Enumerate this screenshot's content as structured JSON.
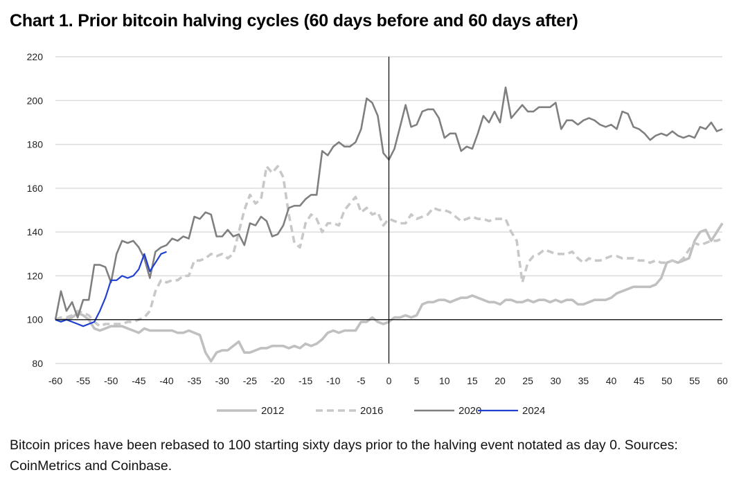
{
  "chart_data": {
    "type": "line",
    "title": "Chart 1. Prior bitcoin halving cycles (60 days before and 60 days after)",
    "xlabel": "",
    "ylabel": "",
    "xlim": [
      -60,
      60
    ],
    "ylim": [
      80,
      220
    ],
    "x_ticks": [
      -60,
      -55,
      -50,
      -45,
      -40,
      -35,
      -30,
      -25,
      -20,
      -15,
      -10,
      -5,
      0,
      5,
      10,
      15,
      20,
      25,
      30,
      35,
      40,
      45,
      50,
      55,
      60
    ],
    "y_ticks": [
      80,
      100,
      120,
      140,
      160,
      180,
      200,
      220
    ],
    "grid": "horizontal",
    "reference_lines": {
      "y": 100,
      "x": 0
    },
    "legend_position": "bottom",
    "x_start": -60,
    "series": [
      {
        "name": "2012",
        "color": "#c0c0c0",
        "style": "solid",
        "values": [
          100,
          100,
          100,
          101,
          103,
          102,
          100,
          96,
          95,
          96,
          97,
          97,
          97,
          96,
          95,
          94,
          96,
          95,
          95,
          95,
          95,
          95,
          94,
          94,
          95,
          94,
          93,
          85,
          81,
          85,
          86,
          86,
          88,
          90,
          85,
          85,
          86,
          87,
          87,
          88,
          88,
          88,
          87,
          88,
          87,
          89,
          88,
          89,
          91,
          94,
          95,
          94,
          95,
          95,
          95,
          99,
          99,
          101,
          99,
          98,
          99,
          101,
          101,
          102,
          101,
          102,
          107,
          108,
          108,
          109,
          109,
          108,
          109,
          110,
          110,
          111,
          110,
          109,
          108,
          108,
          107,
          109,
          109,
          108,
          108,
          109,
          108,
          109,
          109,
          108,
          109,
          108,
          109,
          109,
          107,
          107,
          108,
          109,
          109,
          109,
          110,
          112,
          113,
          114,
          115,
          115,
          115,
          115,
          116,
          119,
          126,
          127,
          126,
          127,
          128,
          136,
          140,
          141,
          136,
          140,
          144
        ]
      },
      {
        "name": "2016",
        "color": "#c8c8c8",
        "style": "dashed",
        "values": [
          100,
          101,
          101,
          102,
          104,
          103,
          102,
          99,
          97,
          98,
          98,
          98,
          98,
          99,
          99,
          100,
          101,
          104,
          113,
          118,
          117,
          118,
          118,
          120,
          120,
          127,
          127,
          128,
          130,
          129,
          130,
          128,
          130,
          140,
          150,
          157,
          153,
          155,
          170,
          167,
          170,
          165,
          148,
          135,
          133,
          144,
          148,
          146,
          140,
          144,
          144,
          143,
          150,
          153,
          156,
          149,
          151,
          148,
          149,
          143,
          146,
          145,
          144,
          144,
          148,
          146,
          147,
          148,
          151,
          150,
          150,
          149,
          147,
          145,
          146,
          147,
          146,
          146,
          145,
          146,
          146,
          146,
          140,
          136,
          117,
          126,
          129,
          130,
          132,
          131,
          130,
          130,
          130,
          131,
          128,
          126,
          128,
          127,
          127,
          128,
          129,
          129,
          128,
          128,
          128,
          127,
          127,
          126,
          127,
          126,
          126,
          127,
          126,
          128,
          132,
          135,
          134,
          135,
          136,
          136,
          137
        ]
      },
      {
        "name": "2020",
        "color": "#7f7f7f",
        "style": "solid",
        "values": [
          100,
          113,
          104,
          108,
          101,
          109,
          109,
          125,
          125,
          124,
          117,
          130,
          136,
          135,
          136,
          133,
          128,
          119,
          131,
          133,
          134,
          137,
          136,
          138,
          137,
          147,
          146,
          149,
          148,
          138,
          138,
          141,
          138,
          139,
          134,
          144,
          143,
          147,
          145,
          138,
          139,
          143,
          151,
          152,
          152,
          155,
          157,
          157,
          177,
          175,
          179,
          181,
          179,
          179,
          181,
          187,
          201,
          199,
          193,
          176,
          173,
          178,
          188,
          198,
          188,
          189,
          195,
          196,
          196,
          192,
          183,
          185,
          185,
          177,
          179,
          178,
          185,
          193,
          190,
          195,
          190,
          206,
          192,
          195,
          198,
          195,
          195,
          197,
          197,
          197,
          199,
          187,
          191,
          191,
          189,
          191,
          192,
          191,
          189,
          188,
          189,
          187,
          195,
          194,
          188,
          187,
          185,
          182,
          184,
          185,
          184,
          186,
          184,
          183,
          184,
          183,
          188,
          187,
          190,
          186,
          187
        ]
      },
      {
        "name": "2024",
        "color": "#1f3fd0",
        "style": "solid",
        "values": [
          100,
          99,
          100,
          99,
          98,
          97,
          98,
          99,
          104,
          110,
          118,
          118,
          120,
          119,
          120,
          123,
          130,
          122,
          126,
          130,
          131
        ]
      }
    ]
  },
  "caption": "Bitcoin prices have been rebased to 100 starting sixty days prior to the halving event notated as day 0. Sources: CoinMetrics and Coinbase."
}
